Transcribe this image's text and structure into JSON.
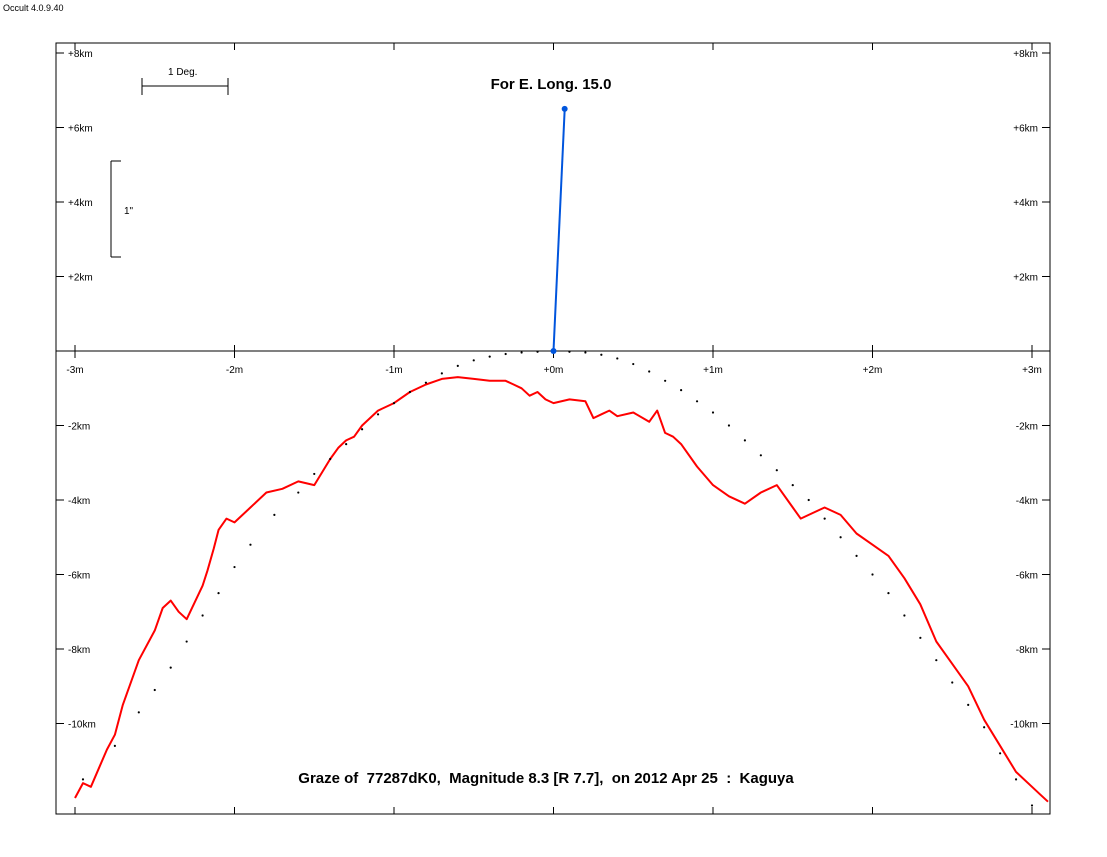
{
  "app": {
    "version": "Occult 4.0.9.40"
  },
  "chart_data": {
    "type": "line",
    "title": "Graze of  77287dK0,  Magnitude 8.3 [R 7.7],  on 2012 Apr 25  :  Kaguya",
    "subtitle": "For E. Long. 15.0",
    "xlabel": "",
    "ylabel": "",
    "xlim": [
      -3.1,
      3.1
    ],
    "ylim": [
      -12.2,
      8.2
    ],
    "grid": false,
    "x_ticks": [
      -3,
      -2,
      -1,
      0,
      1,
      2,
      3
    ],
    "x_tick_labels": [
      "-3m",
      "-2m",
      "-1m",
      "+0m",
      "+1m",
      "+2m",
      "+3m"
    ],
    "y_ticks": [
      8,
      6,
      4,
      2,
      -2,
      -4,
      -6,
      -8,
      -10
    ],
    "y_tick_labels": [
      "+8km",
      "+6km",
      "+4km",
      "+2km",
      "-2km",
      "-4km",
      "-6km",
      "-8km",
      "-10km"
    ],
    "scale_bars": {
      "horizontal": "1 Deg.",
      "vertical": "1\""
    },
    "series": [
      {
        "color": "#ff0000",
        "style": "line",
        "x": [
          -3.0,
          -2.95,
          -2.9,
          -2.85,
          -2.8,
          -2.75,
          -2.7,
          -2.6,
          -2.5,
          -2.45,
          -2.4,
          -2.35,
          -2.3,
          -2.2,
          -2.17,
          -2.13,
          -2.1,
          -2.05,
          -2.0,
          -1.9,
          -1.8,
          -1.7,
          -1.6,
          -1.5,
          -1.4,
          -1.35,
          -1.3,
          -1.25,
          -1.2,
          -1.1,
          -1.0,
          -0.9,
          -0.8,
          -0.7,
          -0.6,
          -0.5,
          -0.4,
          -0.3,
          -0.25,
          -0.2,
          -0.15,
          -0.1,
          -0.05,
          0.0,
          0.1,
          0.2,
          0.25,
          0.3,
          0.35,
          0.4,
          0.5,
          0.6,
          0.65,
          0.7,
          0.75,
          0.8,
          0.9,
          1.0,
          1.1,
          1.2,
          1.3,
          1.4,
          1.5,
          1.55,
          1.6,
          1.7,
          1.8,
          1.9,
          2.0,
          2.1,
          2.2,
          2.3,
          2.4,
          2.5,
          2.6,
          2.7,
          2.8,
          2.9,
          3.0,
          3.05,
          3.1
        ],
        "y": [
          -12.0,
          -11.6,
          -11.7,
          -11.2,
          -10.7,
          -10.3,
          -9.5,
          -8.3,
          -7.5,
          -6.9,
          -6.7,
          -7.0,
          -7.2,
          -6.3,
          -5.9,
          -5.3,
          -4.8,
          -4.5,
          -4.6,
          -4.2,
          -3.8,
          -3.7,
          -3.5,
          -3.6,
          -2.9,
          -2.6,
          -2.4,
          -2.3,
          -2.0,
          -1.6,
          -1.4,
          -1.1,
          -0.9,
          -0.75,
          -0.7,
          -0.75,
          -0.8,
          -0.8,
          -0.9,
          -1.0,
          -1.2,
          -1.1,
          -1.3,
          -1.4,
          -1.3,
          -1.35,
          -1.8,
          -1.7,
          -1.6,
          -1.75,
          -1.65,
          -1.9,
          -1.6,
          -2.2,
          -2.3,
          -2.5,
          -3.1,
          -3.6,
          -3.9,
          -4.1,
          -3.8,
          -3.6,
          -4.2,
          -4.5,
          -4.4,
          -4.2,
          -4.4,
          -4.9,
          -5.2,
          -5.5,
          -6.1,
          -6.8,
          -7.8,
          -8.4,
          -9.0,
          -9.9,
          -10.6,
          -11.3,
          -11.7,
          -11.9,
          -12.1
        ]
      },
      {
        "color": "#000000",
        "style": "dotted",
        "x": [
          -2.95,
          -2.75,
          -2.6,
          -2.5,
          -2.4,
          -2.3,
          -2.2,
          -2.1,
          -2.0,
          -1.9,
          -1.75,
          -1.6,
          -1.5,
          -1.4,
          -1.3,
          -1.2,
          -1.1,
          -1.0,
          -0.9,
          -0.8,
          -0.7,
          -0.6,
          -0.5,
          -0.4,
          -0.3,
          -0.2,
          -0.1,
          0.1,
          0.2,
          0.3,
          0.4,
          0.5,
          0.6,
          0.7,
          0.8,
          0.9,
          1.0,
          1.1,
          1.2,
          1.3,
          1.4,
          1.5,
          1.6,
          1.7,
          1.8,
          1.9,
          2.0,
          2.1,
          2.2,
          2.3,
          2.4,
          2.5,
          2.6,
          2.7,
          2.8,
          2.9,
          3.0
        ],
        "y": [
          -11.5,
          -10.6,
          -9.7,
          -9.1,
          -8.5,
          -7.8,
          -7.1,
          -6.5,
          -5.8,
          -5.2,
          -4.4,
          -3.8,
          -3.3,
          -2.9,
          -2.5,
          -2.1,
          -1.7,
          -1.4,
          -1.1,
          -0.85,
          -0.6,
          -0.4,
          -0.25,
          -0.15,
          -0.08,
          -0.04,
          -0.02,
          -0.02,
          -0.04,
          -0.1,
          -0.2,
          -0.35,
          -0.55,
          -0.8,
          -1.05,
          -1.35,
          -1.65,
          -2.0,
          -2.4,
          -2.8,
          -3.2,
          -3.6,
          -4.0,
          -4.5,
          -5.0,
          -5.5,
          -6.0,
          -6.5,
          -7.1,
          -7.7,
          -8.3,
          -8.9,
          -9.5,
          -10.1,
          -10.8,
          -11.5,
          -12.2
        ]
      },
      {
        "color": "#0055dd",
        "style": "line-markers",
        "x": [
          0.0,
          0.07
        ],
        "y": [
          0.0,
          6.5
        ]
      }
    ]
  }
}
